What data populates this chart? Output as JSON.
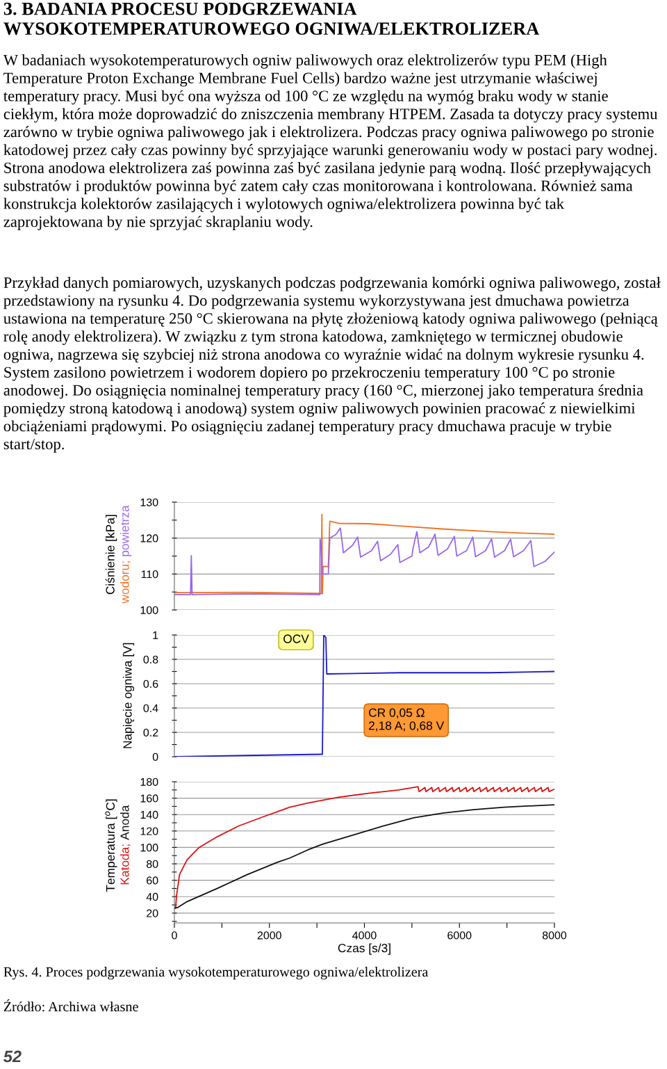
{
  "chart_data": [
    {
      "type": "line",
      "title": "3. BADANIA PROCESU PODGRZEWANIA\nWYSOKOTEMPERATUROWEGO OGNIWA/ELEKTROLIZERA",
      "ylabel": "Ciśnienie [kPa]",
      "annotations": [
        "W badaniach wysokotemperaturowych ogniw paliwowych oraz elektrolizerów typu PEM (High Temperature Proton Exchange Membrane Fuel Cells) bardzo ważne jest utrzymanie właściwej temperatury pracy. Musi być ona wyższa od 100 °C ze względu na wymóg braku wody w stanie ciekłym, która może doprowadzić do zniszczenia membrany HTPEM. Zasada ta dotyczy pracy systemu zarówno w trybie ogniwa paliwowego jak i elektrolizera. Podczas pracy ogniwa paliwowego po stronie katodowej przez cały czas powinny być sprzyjające warunki generowaniu wody w postaci pary wodnej. Strona anodowa elektrolizera zaś powinna zaś być zasilana jedynie parą wodną. Ilość przepływających substratów i produktów powinna być zatem cały czas monitorowana i kontrolowana. Również sama konstrukcja kolektorów zasilających i wylotowych ogniwa/elektrolizera powinna być tak zaprojektowana by nie sprzyjać skraplaniu wody.",
        "Przykład danych pomiarowych, uzyskanych podczas podgrzewania komórki ogniwa paliwowego, został przedstawiony na rysunku 4. Do podgrzewania systemu wykorzystywana jest dmuchawa powietrza ustawiona na temperaturę 250 °C skierowana na płytę złożeniową katody ogniwa paliwowego (pełniącą rolę anody elektrolizera). W związku z tym strona katodowa, zamkniętego w termicznej obudowie ogniwa, nagrzewa się szybciej niż strona anodowa co wyraźnie widać na dolnym wykresie rysunku 4. System zasilono powietrzem i wodorem dopiero po przekroczeniu temperatury 100 °C po stronie anodowej. Do osiągnięcia nominalnej temperatury pracy (160 °C, mierzonej jako temperatura średnia pomiędzy stroną katodową i anodową) system ogniw paliwowych powinien pracować z niewielkimi obciążeniami prądowymi. Po osiągnięciu zadanej temperatury pracy dmuchawa pracuje w trybie start/stop."
      ],
      "xlim": [
        0,
        8000
      ],
      "ylim": [
        100,
        130
      ],
      "yticks": [
        100,
        {
          "value": 105,
          "label": null
        },
        110,
        {
          "value": 115,
          "label": null
        },
        120,
        {
          "value": 125,
          "label": null
        },
        130
      ],
      "tick_labels": "y",
      "grid": "y",
      "series": [
        {
          "name": "wodoru;",
          "color": "#f07020",
          "x": [
            0,
            1500,
            3093,
            3105,
            3115,
            3130,
            3240,
            3271,
            3462,
            4098,
            4735,
            5690,
            6644,
            7280,
            8000
          ],
          "values": [
            104.8,
            104.9,
            104.6,
            126.6,
            104.5,
            112.1,
            112.1,
            124.7,
            124.1,
            124,
            123.4,
            122.5,
            121.8,
            121.4,
            121.1
          ]
        },
        {
          "name": "powietrza",
          "color": "#9966ee",
          "x": [
            0,
            340,
            356,
            372,
            1500,
            3060,
            3067,
            3090,
            3110,
            3240,
            3271,
            3400,
            3494,
            3558,
            3750,
            3857,
            3920,
            4150,
            4277,
            4340,
            4550,
            4703,
            4747,
            5000,
            5021,
            5104,
            5168,
            5350,
            5486,
            5549,
            5750,
            5893,
            5944,
            6150,
            6281,
            6339,
            6550,
            6676,
            6739,
            6950,
            7077,
            7140,
            7350,
            7503,
            7567,
            7800,
            8000
          ],
          "values": [
            104.3,
            104.3,
            115.1,
            104.3,
            104.5,
            104.3,
            119.7,
            118,
            110,
            110,
            120,
            121,
            122.8,
            115.9,
            118,
            120.3,
            114.7,
            116.5,
            119.1,
            113.7,
            115.5,
            118.2,
            113.2,
            115,
            117,
            121.8,
            115.9,
            117.5,
            121.1,
            115.2,
            117,
            120.5,
            115,
            116.5,
            120.3,
            114.8,
            116.5,
            119.8,
            114.7,
            116.5,
            119.7,
            114.8,
            116.5,
            119.3,
            112.1,
            113.5,
            116.1
          ]
        }
      ]
    },
    {
      "type": "line",
      "ylabel": "Napięcie ogniwa [V]",
      "annotations": [
        "OCV",
        "CR 0,05 Ω\n2,18 A; 0,68 V"
      ],
      "xlim": [
        0,
        8000
      ],
      "ylim": [
        0,
        1
      ],
      "yticks": [
        0,
        {
          "value": 0.1,
          "label": null
        },
        0.2,
        {
          "value": 0.3,
          "label": null
        },
        0.4,
        {
          "value": 0.5,
          "label": null
        },
        0.6,
        {
          "value": 0.7,
          "label": null
        },
        0.8,
        {
          "value": 0.9,
          "label": null
        },
        1
      ],
      "tick_labels": "y",
      "grid": "y",
      "series": [
        {
          "color": "#1a1acc",
          "x": [
            0,
            1500,
            3100,
            3115,
            3144,
            3188,
            3208,
            4735,
            6644,
            8000
          ],
          "values": [
            0,
            0.01,
            0.02,
            0.02,
            1.0,
            0.98,
            0.68,
            0.69,
            0.69,
            0.7
          ]
        }
      ]
    },
    {
      "type": "line",
      "ylabel": "Temperatura [$^{o}$C]",
      "xlabel": "Czas [s/3]",
      "annotations": [
        "Rys. 4. Proces podgrzewania wysokotemperaturowego ogniwa/elektrolizera",
        "Źródło: Archiwa własne",
        "52"
      ],
      "xlim": [
        0,
        8000
      ],
      "xticks": [
        0,
        {
          "value": 1000,
          "label": null
        },
        2000,
        {
          "value": 3000,
          "label": null
        },
        4000,
        {
          "value": 5000,
          "label": null
        },
        6000,
        {
          "value": 7000,
          "label": null
        },
        8000
      ],
      "ylim": [
        8,
        180
      ],
      "yticks": [
        {
          "value": 10,
          "label": null
        },
        20,
        {
          "value": 30,
          "label": null
        },
        40,
        {
          "value": 50,
          "label": null
        },
        60,
        {
          "value": 70,
          "label": null
        },
        80,
        {
          "value": 90,
          "label": null
        },
        100,
        {
          "value": 110,
          "label": null
        },
        120,
        {
          "value": 130,
          "label": null
        },
        140,
        {
          "value": 150,
          "label": null
        },
        160,
        {
          "value": 170,
          "label": null
        },
        180
      ],
      "grid": "y",
      "series": [
        {
          "name": "Katoda;",
          "color": "#dd1111",
          "x": [
            0,
            25,
            45,
            108,
            267,
            521,
            902,
            1347,
            1855,
            2236,
            2427,
            2808,
            3443,
            4079,
            4714,
            5127,
            5150,
            5274,
            5294,
            5418,
            5438,
            5562,
            5582,
            5706,
            5726,
            5850,
            5870,
            5994,
            6014,
            6138,
            6158,
            6282,
            6302,
            6426,
            6446,
            6570,
            6590,
            6714,
            6734,
            6858,
            6878,
            7002,
            7022,
            7146,
            7166,
            7290,
            7310,
            7434,
            7454,
            7578,
            7598,
            7722,
            7742,
            7866,
            7886,
            8000
          ],
          "values": [
            26,
            26,
            41,
            67,
            85,
            100,
            113,
            126,
            137,
            145,
            149,
            154,
            161,
            166,
            170,
            174,
            168,
            173,
            168,
            173,
            168,
            173,
            168,
            173,
            168,
            173,
            168,
            173,
            168,
            173,
            168,
            173,
            168,
            173,
            168,
            173,
            168,
            173,
            168,
            173,
            168,
            173,
            168,
            173,
            168,
            173,
            168,
            173,
            168,
            173,
            168,
            173,
            168,
            173,
            168,
            171
          ]
        },
        {
          "name": "Anoda",
          "color": "#111111",
          "x": [
            0,
            76,
            267,
            902,
            1537,
            2173,
            2427,
            2808,
            3126,
            3761,
            4396,
            5032,
            5667,
            6302,
            6938,
            8000
          ],
          "values": [
            26,
            27,
            34,
            50,
            67,
            82,
            87,
            97,
            104,
            115,
            126,
            136,
            142,
            146,
            149,
            152
          ]
        }
      ]
    }
  ]
}
